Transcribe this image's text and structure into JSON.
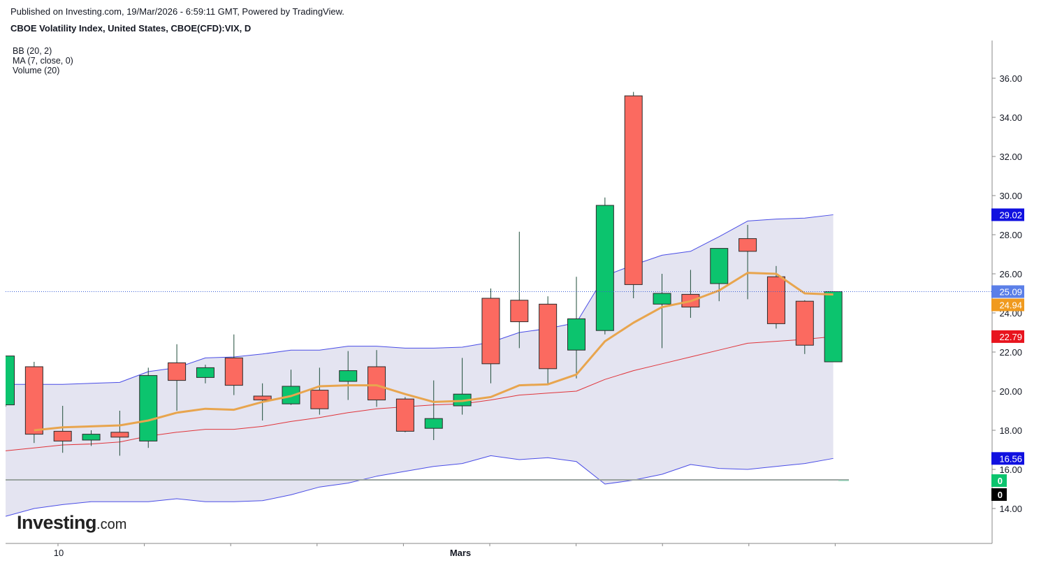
{
  "header": {
    "published": "Published on Investing.com, 19/Mar/2026 - 6:59:11 GMT, Powered by TradingView.",
    "symbol": "CBOE Volatility Index, United States, CBOE(CFD):VIX, D"
  },
  "legend": [
    "BB (20, 2)",
    "MA (7, close, 0)",
    "Volume (20)"
  ],
  "logo": {
    "main": "Investing",
    "suffix": ".com"
  },
  "colors": {
    "up": "#0cc46e",
    "down": "#fb6a60",
    "wick": "#1f4d3a",
    "bb_band": "#4a4de6",
    "bb_basis": "#e0343a",
    "bb_fill": "#e4e4f1",
    "ma": "#e8a54e",
    "last_line": "#3a5fd6"
  },
  "chart_data": {
    "type": "candlestick",
    "x_labels": [
      {
        "i": 3,
        "label": "10"
      },
      {
        "i": 27,
        "label": "Mars"
      }
    ],
    "y_ticks": [
      "14.00",
      "16.00",
      "18.00",
      "20.00",
      "22.00",
      "24.00",
      "26.00",
      "28.00",
      "30.00",
      "32.00",
      "34.00",
      "36.00"
    ],
    "ylim": [
      12.2,
      37.9
    ],
    "candles": [
      {
        "o": 19.3,
        "h": 21.8,
        "l": 19.2,
        "c": 21.8
      },
      {
        "o": 21.25,
        "h": 21.5,
        "l": 17.35,
        "c": 17.8
      },
      {
        "o": 17.95,
        "h": 19.25,
        "l": 16.85,
        "c": 17.45
      },
      {
        "o": 17.5,
        "h": 18.0,
        "l": 17.2,
        "c": 17.8
      },
      {
        "o": 17.9,
        "h": 19.0,
        "l": 16.7,
        "c": 17.65
      },
      {
        "o": 17.45,
        "h": 21.2,
        "l": 17.1,
        "c": 20.8
      },
      {
        "o": 21.45,
        "h": 22.4,
        "l": 19.0,
        "c": 20.55
      },
      {
        "o": 20.7,
        "h": 21.35,
        "l": 20.4,
        "c": 21.2
      },
      {
        "o": 21.7,
        "h": 22.9,
        "l": 19.8,
        "c": 20.3
      },
      {
        "o": 19.75,
        "h": 20.4,
        "l": 18.5,
        "c": 19.55
      },
      {
        "o": 19.35,
        "h": 21.1,
        "l": 19.3,
        "c": 20.25
      },
      {
        "o": 20.05,
        "h": 21.2,
        "l": 18.8,
        "c": 19.1
      },
      {
        "o": 20.5,
        "h": 22.05,
        "l": 19.55,
        "c": 21.05
      },
      {
        "o": 21.25,
        "h": 22.1,
        "l": 19.2,
        "c": 19.55
      },
      {
        "o": 19.6,
        "h": 19.7,
        "l": 17.9,
        "c": 17.95
      },
      {
        "o": 18.1,
        "h": 20.55,
        "l": 17.5,
        "c": 18.6
      },
      {
        "o": 19.25,
        "h": 21.7,
        "l": 18.8,
        "c": 19.85
      },
      {
        "o": 24.75,
        "h": 25.25,
        "l": 20.4,
        "c": 21.4
      },
      {
        "o": 24.65,
        "h": 28.15,
        "l": 22.2,
        "c": 23.55
      },
      {
        "o": 24.45,
        "h": 24.85,
        "l": 20.35,
        "c": 21.15
      },
      {
        "o": 22.1,
        "h": 25.85,
        "l": 20.65,
        "c": 23.7
      },
      {
        "o": 23.1,
        "h": 29.9,
        "l": 22.9,
        "c": 29.5
      },
      {
        "o": 35.1,
        "h": 35.3,
        "l": 24.75,
        "c": 25.45
      },
      {
        "o": 24.45,
        "h": 26.0,
        "l": 22.2,
        "c": 25.0
      },
      {
        "o": 24.95,
        "h": 26.2,
        "l": 23.75,
        "c": 24.3
      },
      {
        "o": 25.5,
        "h": 27.3,
        "l": 24.6,
        "c": 27.3
      },
      {
        "o": 27.8,
        "h": 28.5,
        "l": 24.7,
        "c": 27.15
      },
      {
        "o": 25.85,
        "h": 26.4,
        "l": 23.2,
        "c": 23.45
      },
      {
        "o": 24.6,
        "h": 24.65,
        "l": 21.9,
        "c": 22.35
      },
      {
        "o": 21.5,
        "h": 25.09,
        "l": 21.5,
        "c": 25.09
      }
    ],
    "ma7": [
      null,
      18.0,
      18.15,
      18.2,
      18.25,
      18.5,
      18.9,
      19.1,
      19.05,
      19.45,
      19.75,
      20.25,
      20.3,
      20.3,
      19.85,
      19.45,
      19.5,
      19.7,
      20.3,
      20.35,
      20.85,
      22.55,
      23.5,
      24.3,
      24.6,
      25.15,
      26.05,
      26.0,
      25.0,
      24.94
    ],
    "bb_upper": [
      20.35,
      20.35,
      20.35,
      20.4,
      20.45,
      21.0,
      21.2,
      21.7,
      21.75,
      21.9,
      22.1,
      22.1,
      22.3,
      22.3,
      22.2,
      22.2,
      22.25,
      22.5,
      23.0,
      23.2,
      23.5,
      25.9,
      26.45,
      26.95,
      27.15,
      27.9,
      28.7,
      28.8,
      28.85,
      29.02
    ],
    "bb_basis": [
      16.95,
      17.1,
      17.25,
      17.3,
      17.4,
      17.7,
      17.9,
      18.05,
      18.05,
      18.2,
      18.45,
      18.65,
      18.9,
      19.1,
      19.2,
      19.3,
      19.35,
      19.55,
      19.8,
      19.9,
      20.0,
      20.6,
      21.05,
      21.4,
      21.75,
      22.1,
      22.45,
      22.55,
      22.65,
      22.79
    ],
    "bb_lower": [
      13.6,
      14.0,
      14.2,
      14.35,
      14.35,
      14.35,
      14.5,
      14.35,
      14.35,
      14.4,
      14.7,
      15.1,
      15.3,
      15.65,
      15.9,
      16.15,
      16.3,
      16.7,
      16.5,
      16.6,
      16.4,
      15.25,
      15.45,
      15.75,
      16.25,
      16.05,
      16.0,
      16.15,
      16.3,
      16.56
    ],
    "volume": [
      0,
      0,
      0,
      0,
      0,
      0,
      0,
      0,
      0,
      0,
      0,
      0,
      0,
      0,
      0,
      0,
      0,
      0,
      0,
      0,
      0,
      0,
      0,
      0,
      0,
      0,
      0,
      0,
      0,
      0
    ],
    "price_labels": [
      {
        "value": 29.02,
        "text": "29.02",
        "bg": "#1010e0",
        "fg": "#ffffff"
      },
      {
        "value": 25.09,
        "text": "25.09",
        "bg": "#5b7fe8",
        "fg": "#ffffff"
      },
      {
        "value": 24.94,
        "text": "24.94",
        "bg": "#f09a1e",
        "fg": "#ffffff"
      },
      {
        "value": 22.79,
        "text": "22.79",
        "bg": "#e8141e",
        "fg": "#ffffff"
      },
      {
        "value": 16.56,
        "text": "16.56",
        "bg": "#1010e0",
        "fg": "#ffffff"
      }
    ],
    "volume_labels": [
      {
        "text": "0",
        "bg": "#0cc46e",
        "fg": "#ffffff"
      },
      {
        "text": "0",
        "bg": "#000000",
        "fg": "#ffffff"
      }
    ],
    "last_price": 25.09
  }
}
